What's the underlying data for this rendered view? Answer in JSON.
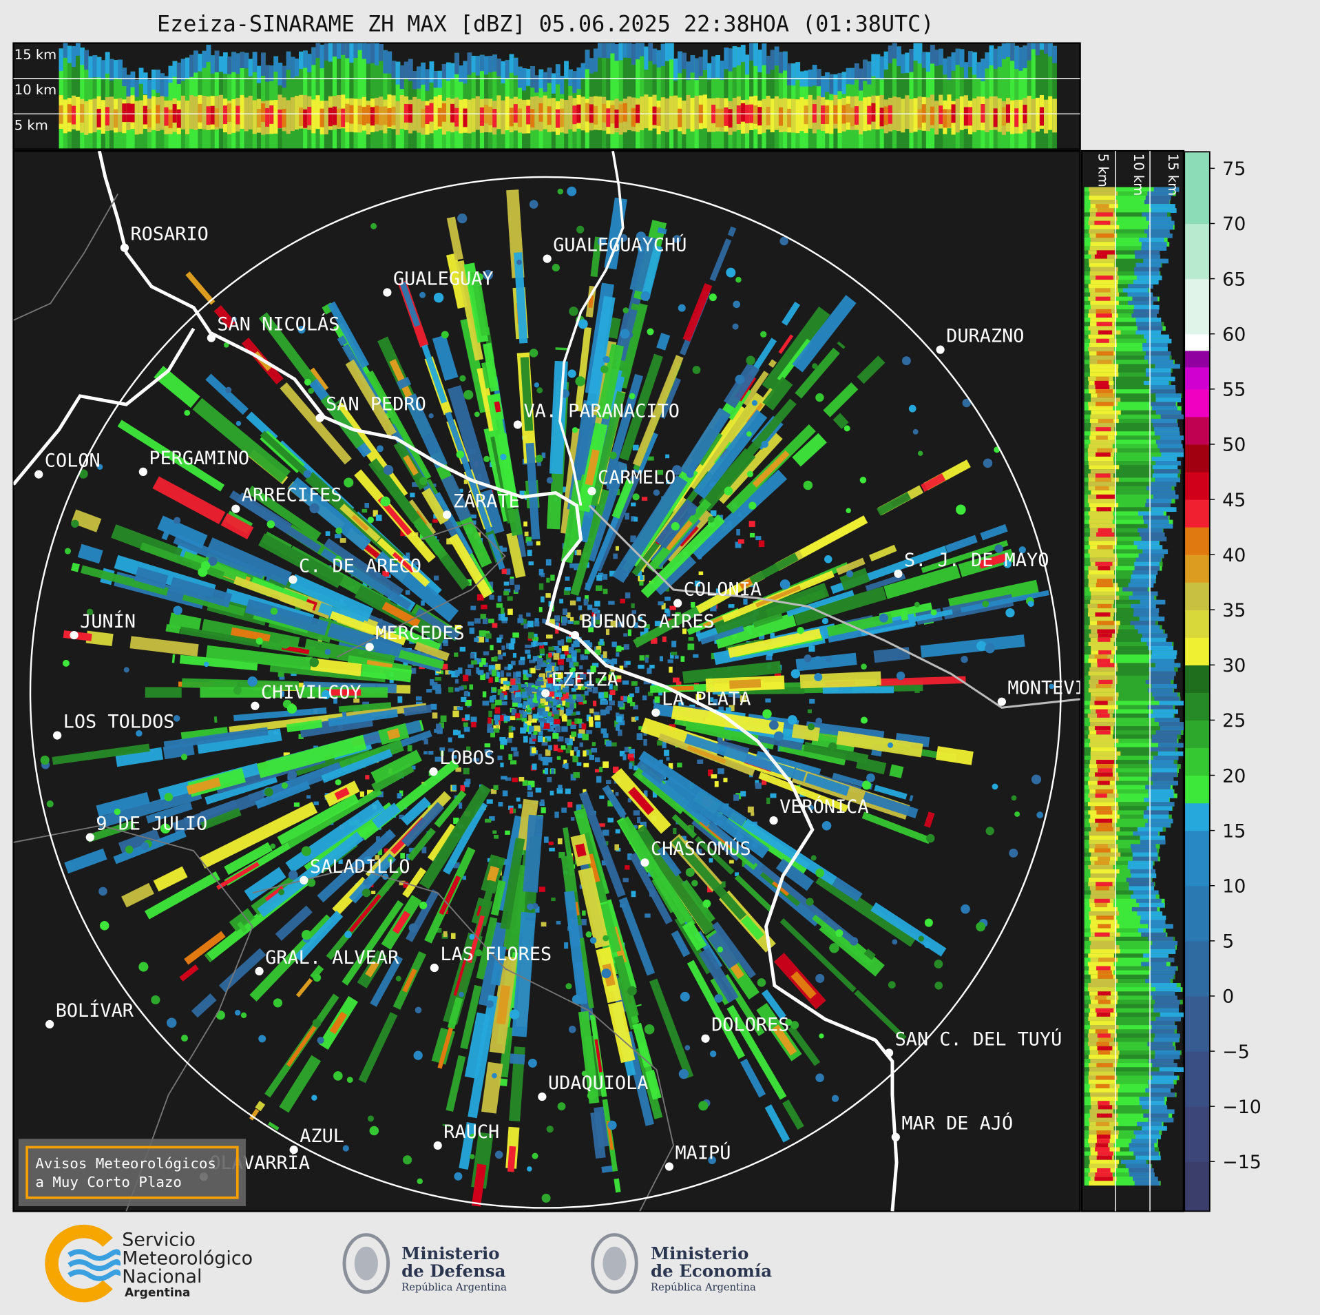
{
  "title": "Ezeiza-SINARAME ZH MAX [dBZ] 05.06.2025 22:38HOA (01:38UTC)",
  "top_panel": {
    "height_labels": [
      "15 km",
      "10 km",
      "5 km"
    ]
  },
  "side_panel": {
    "height_labels": [
      "5 km",
      "10 km",
      "15 km"
    ]
  },
  "map": {
    "places": [
      "ROSARIO",
      "GUALEGUAYCHÚ",
      "GUALEGUAY",
      "SAN NICOLÁS",
      "DURAZNO",
      "SAN PEDRO",
      "VA. PARANACITO",
      "COLON",
      "PERGAMINO",
      "CARMELO",
      "ARRECIFES",
      "ZÁRATE",
      "S. J. DE MAYO",
      "C. DE ARECO",
      "COLONIA",
      "BUENOS AIRES",
      "JUNÍN",
      "MERCEDES",
      "EZEIZA",
      "CHIVILCOY",
      "MONTEVIDEO",
      "LA PLATA",
      "LOS TOLDOS",
      "LOBOS",
      "VERÓNICA",
      "9 DE JULIO",
      "CHASCOMÚS",
      "SALADILLO",
      "GRAL. ALVEAR",
      "LAS FLORES",
      "BOLÍVAR",
      "DOLORES",
      "SAN C. DEL TUYÚ",
      "UDAQUIOLA",
      "MAR DE AJÓ",
      "AZUL",
      "RAUCH",
      "OLAVARRÍA",
      "MAIPÚ"
    ]
  },
  "colorbar": {
    "range": [
      -19.5,
      76.5
    ],
    "ticks": [
      75,
      70,
      65,
      60,
      55,
      50,
      45,
      40,
      35,
      30,
      25,
      20,
      15,
      10,
      5,
      0,
      {
        "value": -5,
        "label": "−5"
      },
      {
        "value": -10,
        "label": "−10"
      },
      {
        "value": -15,
        "label": "−15"
      }
    ]
  },
  "warning_box": {
    "lines": [
      "Avisos Meteorológicos",
      "a Muy Corto Plazo"
    ]
  },
  "footer": {
    "smn": [
      "Servicio",
      "Meteorológico",
      "Nacional",
      "Argentina"
    ],
    "defensa": [
      "Ministerio",
      "de Defensa",
      "República Argentina"
    ],
    "economia": [
      "Ministerio",
      "de Economía",
      "República Argentina"
    ]
  }
}
